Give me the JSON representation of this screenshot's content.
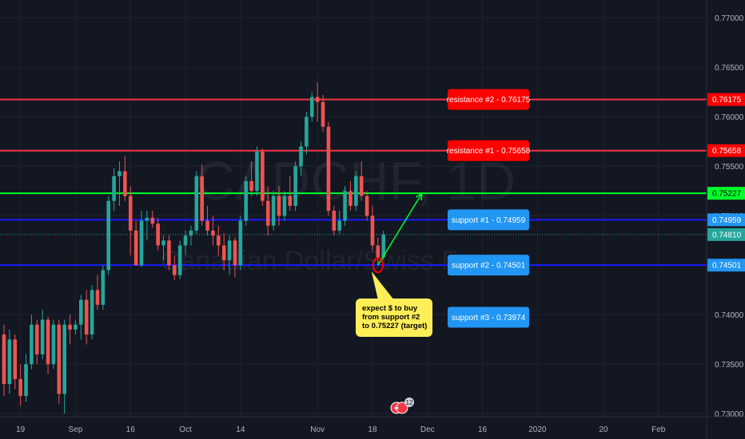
{
  "chart_data": {
    "type": "candlestick",
    "watermark": {
      "symbol": "CADCHF, 1D",
      "name": "Canadian Dollar/Swiss Franc"
    },
    "ylim": [
      0.7297,
      0.7718
    ],
    "y_ticks": [
      "0.77000",
      "0.76500",
      "0.76000",
      "0.75500",
      "0.75000",
      "0.74500",
      "0.74000",
      "0.73500",
      "0.73000"
    ],
    "x_ticks": [
      {
        "label": "19",
        "i": 3
      },
      {
        "label": "Sep",
        "i": 13
      },
      {
        "label": "16",
        "i": 23
      },
      {
        "label": "Oct",
        "i": 33
      },
      {
        "label": "14",
        "i": 43
      },
      {
        "label": "Nov",
        "i": 57
      },
      {
        "label": "18",
        "i": 67
      },
      {
        "label": "Dec",
        "i": 77
      },
      {
        "label": "16",
        "i": 87
      },
      {
        "label": "2020",
        "i": 97
      },
      {
        "label": "20",
        "i": 109
      },
      {
        "label": "Feb",
        "i": 119
      }
    ],
    "candles": [
      [
        0.738,
        0.739,
        0.7318,
        0.733
      ],
      [
        0.733,
        0.7385,
        0.732,
        0.7375
      ],
      [
        0.7375,
        0.738,
        0.7325,
        0.7335
      ],
      [
        0.7335,
        0.735,
        0.7308,
        0.7318
      ],
      [
        0.7318,
        0.736,
        0.7312,
        0.735
      ],
      [
        0.735,
        0.74,
        0.7345,
        0.739
      ],
      [
        0.739,
        0.7395,
        0.735,
        0.736
      ],
      [
        0.736,
        0.7405,
        0.7355,
        0.7395
      ],
      [
        0.7395,
        0.7398,
        0.734,
        0.735
      ],
      [
        0.735,
        0.7395,
        0.7345,
        0.739
      ],
      [
        0.739,
        0.7395,
        0.731,
        0.732
      ],
      [
        0.732,
        0.7395,
        0.73,
        0.739
      ],
      [
        0.739,
        0.74,
        0.737,
        0.7385
      ],
      [
        0.7385,
        0.7395,
        0.738,
        0.739
      ],
      [
        0.739,
        0.742,
        0.7375,
        0.7415
      ],
      [
        0.7415,
        0.7425,
        0.737,
        0.738
      ],
      [
        0.738,
        0.743,
        0.7375,
        0.7425
      ],
      [
        0.7425,
        0.744,
        0.7405,
        0.741
      ],
      [
        0.741,
        0.745,
        0.7405,
        0.7445
      ],
      [
        0.7445,
        0.752,
        0.744,
        0.7515
      ],
      [
        0.7515,
        0.7548,
        0.7505,
        0.754
      ],
      [
        0.754,
        0.7555,
        0.751,
        0.7545
      ],
      [
        0.7545,
        0.756,
        0.7515,
        0.752
      ],
      [
        0.752,
        0.753,
        0.746,
        0.7485
      ],
      [
        0.7485,
        0.7495,
        0.745,
        0.745
      ],
      [
        0.745,
        0.7505,
        0.7448,
        0.7495
      ],
      [
        0.7495,
        0.7505,
        0.7475,
        0.7498
      ],
      [
        0.7498,
        0.7505,
        0.7488,
        0.7492
      ],
      [
        0.7492,
        0.7498,
        0.7465,
        0.747
      ],
      [
        0.747,
        0.748,
        0.7455,
        0.7475
      ],
      [
        0.7475,
        0.748,
        0.7445,
        0.745
      ],
      [
        0.745,
        0.746,
        0.7435,
        0.744
      ],
      [
        0.744,
        0.7475,
        0.7436,
        0.747
      ],
      [
        0.747,
        0.7485,
        0.746,
        0.748
      ],
      [
        0.748,
        0.749,
        0.747,
        0.7485
      ],
      [
        0.7485,
        0.7545,
        0.7482,
        0.754
      ],
      [
        0.754,
        0.7552,
        0.749,
        0.7495
      ],
      [
        0.7495,
        0.751,
        0.748,
        0.7485
      ],
      [
        0.7485,
        0.75,
        0.747,
        0.748
      ],
      [
        0.748,
        0.749,
        0.746,
        0.747
      ],
      [
        0.747,
        0.7482,
        0.7445,
        0.7455
      ],
      [
        0.7455,
        0.748,
        0.744,
        0.7475
      ],
      [
        0.7475,
        0.7478,
        0.7438,
        0.745
      ],
      [
        0.745,
        0.75,
        0.7445,
        0.7495
      ],
      [
        0.7495,
        0.754,
        0.749,
        0.7535
      ],
      [
        0.7535,
        0.7555,
        0.752,
        0.7525
      ],
      [
        0.7525,
        0.757,
        0.752,
        0.7565
      ],
      [
        0.7565,
        0.7568,
        0.751,
        0.7515
      ],
      [
        0.7515,
        0.753,
        0.748,
        0.749
      ],
      [
        0.749,
        0.7525,
        0.7485,
        0.752
      ],
      [
        0.752,
        0.753,
        0.749,
        0.75
      ],
      [
        0.75,
        0.7525,
        0.7495,
        0.752
      ],
      [
        0.752,
        0.754,
        0.7505,
        0.751
      ],
      [
        0.751,
        0.7555,
        0.7505,
        0.755
      ],
      [
        0.755,
        0.7575,
        0.754,
        0.757
      ],
      [
        0.757,
        0.7605,
        0.7562,
        0.76
      ],
      [
        0.76,
        0.7625,
        0.7595,
        0.762
      ],
      [
        0.762,
        0.7635,
        0.7595,
        0.7615
      ],
      [
        0.7615,
        0.7622,
        0.7585,
        0.759
      ],
      [
        0.759,
        0.7595,
        0.75,
        0.7505
      ],
      [
        0.7505,
        0.751,
        0.748,
        0.7485
      ],
      [
        0.7485,
        0.7505,
        0.7482,
        0.7495
      ],
      [
        0.7495,
        0.753,
        0.749,
        0.7525
      ],
      [
        0.7525,
        0.7535,
        0.7505,
        0.751
      ],
      [
        0.751,
        0.7545,
        0.7505,
        0.754
      ],
      [
        0.754,
        0.7555,
        0.7515,
        0.752
      ],
      [
        0.752,
        0.7525,
        0.7495,
        0.75
      ],
      [
        0.75,
        0.751,
        0.7465,
        0.747
      ],
      [
        0.747,
        0.7478,
        0.745,
        0.7458
      ],
      [
        0.7458,
        0.7485,
        0.7455,
        0.7481
      ]
    ],
    "levels": [
      {
        "label": "resistance #2 - 0.76175",
        "price": "0.76175",
        "value": 0.76175,
        "line_color": "#f23645",
        "box_color": "#ff0000",
        "text_color": "#ffffff"
      },
      {
        "label": "resistance #1 - 0.75658",
        "price": "0.75658",
        "value": 0.75658,
        "line_color": "#f23645",
        "box_color": "#ff0000",
        "text_color": "#ffffff"
      },
      {
        "label": "",
        "price": "0.75227",
        "value": 0.75227,
        "line_color": "#00ff2a",
        "box_color": "#00ff2a",
        "text_color": "#000000"
      },
      {
        "label": "support #1 - 0.74959",
        "price": "0.74959",
        "value": 0.74959,
        "line_color": "#1a1aff",
        "box_color": "#2196f3",
        "text_color": "#ffffff"
      },
      {
        "label": "support #2 - 0.74501",
        "price": "0.74501",
        "value": 0.74501,
        "line_color": "#1a1aff",
        "box_color": "#2196f3",
        "text_color": "#ffffff"
      },
      {
        "label": "support #3 - 0.73974",
        "price": "0.73974",
        "value": 0.73974,
        "line_color": null,
        "box_color": "#2196f3",
        "text_color": "#ffffff"
      }
    ],
    "last_price": {
      "price": "0.74810",
      "value": 0.7481,
      "color": "#26a69a"
    },
    "note": {
      "lines": [
        "expect $ to buy",
        "from support #2",
        "to 0.75227 (target)"
      ],
      "color": "#ffee58"
    },
    "arrow": {
      "from": {
        "i": 68,
        "value": 0.74501
      },
      "to": {
        "i": 76,
        "value": 0.75227
      },
      "color": "#00ff2a"
    },
    "marker": {
      "i": 68,
      "value": 0.74501,
      "color": "#ff0000"
    },
    "events_badge": "12",
    "colors": {
      "up": "#26a69a",
      "down": "#ef5350",
      "background": "#131722",
      "grid": "#1e2230",
      "axis_text": "#b2b5be"
    }
  }
}
